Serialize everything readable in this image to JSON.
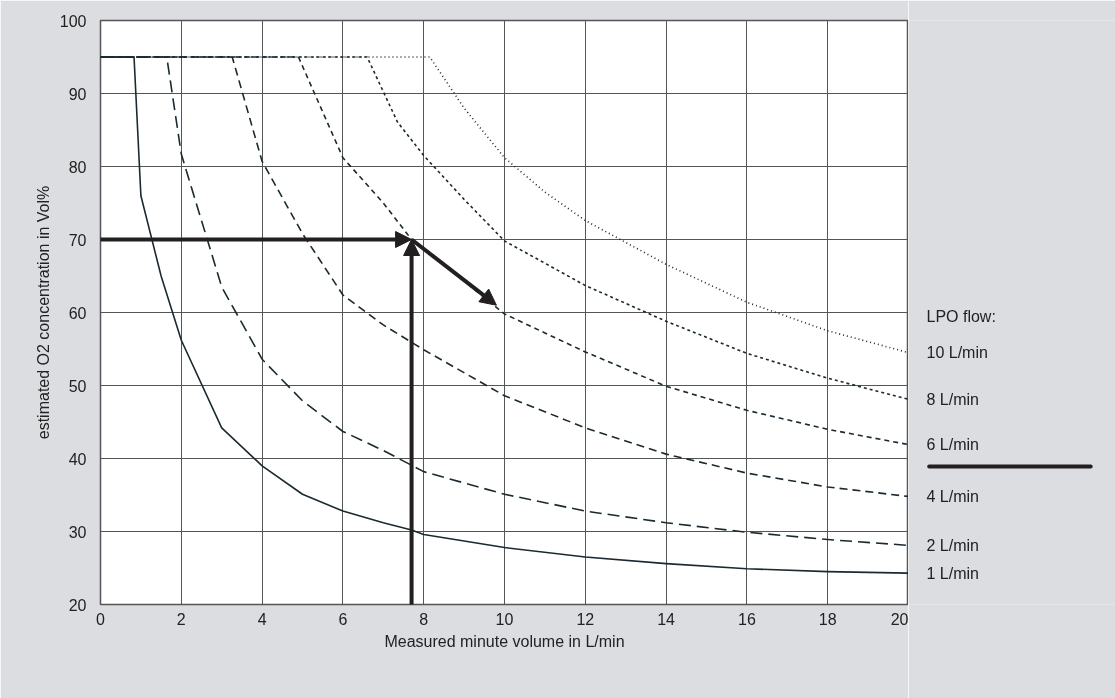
{
  "chart_data": {
    "type": "line",
    "xlabel": "Measured minute volume in L/min",
    "ylabel": "estimated O2 concentration in Vol%",
    "legend_title": "LPO flow:",
    "xlim": [
      0,
      20
    ],
    "ylim": [
      20,
      100
    ],
    "xticks": [
      0,
      2,
      4,
      6,
      8,
      10,
      12,
      14,
      16,
      18,
      20
    ],
    "yticks": [
      20,
      30,
      40,
      50,
      60,
      70,
      80,
      90,
      100
    ],
    "grid": true,
    "marker": "none",
    "series": [
      {
        "name": "10 L/min",
        "color": "#1a2a30",
        "line_style": "dotted",
        "x": [
          0,
          8.15,
          9,
          10,
          11,
          12,
          14,
          16,
          18,
          20
        ],
        "values": [
          95,
          95,
          88,
          81.2,
          76.5,
          72.6,
          66.6,
          61.4,
          57.5,
          54.5
        ]
      },
      {
        "name": "8 L/min",
        "color": "#1a2a30",
        "line_style": "dotted",
        "x": [
          0,
          6.6,
          7.35,
          8,
          9,
          10,
          12,
          14,
          16,
          18,
          20
        ],
        "values": [
          95,
          95,
          86.1,
          81.5,
          75.5,
          69.8,
          63.7,
          58.8,
          54.4,
          51,
          48.1
        ]
      },
      {
        "name": "6 L/min",
        "color": "#1a2a30",
        "line_style": "dashed",
        "x": [
          0,
          4.9,
          6,
          7,
          7.7,
          8,
          9,
          10,
          12,
          14,
          16,
          18,
          20
        ],
        "values": [
          95,
          95,
          81.2,
          75,
          70,
          68.7,
          64.3,
          59.8,
          54.6,
          49.9,
          46.6,
          44,
          41.9
        ]
      },
      {
        "name": "4 L/min",
        "color": "#1a2a30",
        "line_style": "dashed",
        "x": [
          0,
          3.26,
          4,
          5,
          6,
          7,
          8,
          10,
          12,
          14,
          16,
          18,
          20
        ],
        "values": [
          95,
          95,
          80.7,
          70.8,
          62.4,
          58.3,
          54.9,
          48.6,
          44.2,
          40.6,
          38,
          36.1,
          34.8
        ]
      },
      {
        "name": "2 L/min",
        "color": "#1a2a30",
        "line_style": "dashed",
        "x": [
          0,
          1.64,
          2,
          3,
          4,
          5,
          6,
          7,
          8,
          10,
          12,
          14,
          16,
          18,
          20
        ],
        "values": [
          95,
          95,
          81.7,
          63.5,
          53.6,
          47.9,
          43.7,
          41.1,
          38.2,
          35.1,
          32.8,
          31.2,
          29.9,
          28.9,
          28.1
        ]
      },
      {
        "name": "1 L/min",
        "color": "#1a2a30",
        "line_style": "solid",
        "x": [
          0,
          0.83,
          1,
          1.5,
          2,
          3,
          4,
          5,
          6,
          7,
          7.7,
          8,
          10,
          12,
          14,
          16,
          18,
          20
        ],
        "values": [
          95,
          95,
          76,
          65,
          56.2,
          44.2,
          39,
          35.1,
          32.8,
          31.2,
          30.2,
          29.6,
          27.8,
          26.5,
          25.6,
          24.9,
          24.5,
          24.3
        ]
      }
    ]
  }
}
